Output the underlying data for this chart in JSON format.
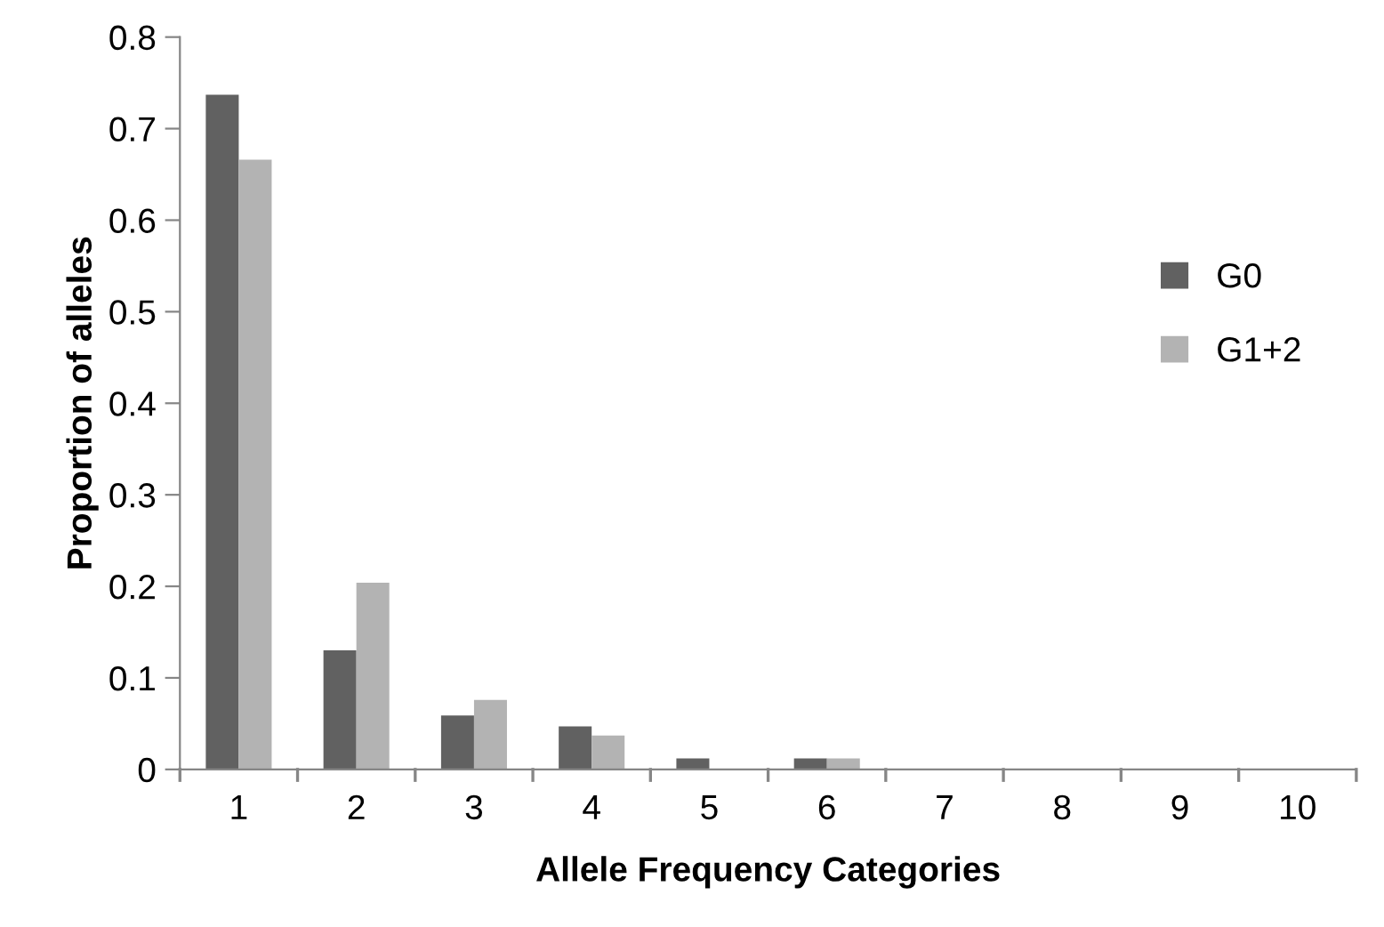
{
  "chart_data": {
    "type": "bar",
    "xlabel": "Allele Frequency Categories",
    "ylabel": "Proportion of alleles",
    "categories": [
      "1",
      "2",
      "3",
      "4",
      "5",
      "6",
      "7",
      "8",
      "9",
      "10"
    ],
    "series": [
      {
        "name": "G0",
        "color": "#616161",
        "values": [
          0.737,
          0.13,
          0.059,
          0.047,
          0.012,
          0.012,
          0,
          0,
          0,
          0
        ]
      },
      {
        "name": "G1+2",
        "color": "#b3b3b3",
        "values": [
          0.666,
          0.204,
          0.076,
          0.037,
          0,
          0.012,
          0,
          0,
          0,
          0
        ]
      }
    ],
    "ylim": [
      0,
      0.8
    ],
    "yticks": [
      {
        "value": 0,
        "label": "0"
      },
      0.1,
      0.2,
      0.3,
      0.4,
      0.5,
      0.6,
      0.7,
      0.8
    ],
    "grid": false,
    "legend": "right"
  }
}
